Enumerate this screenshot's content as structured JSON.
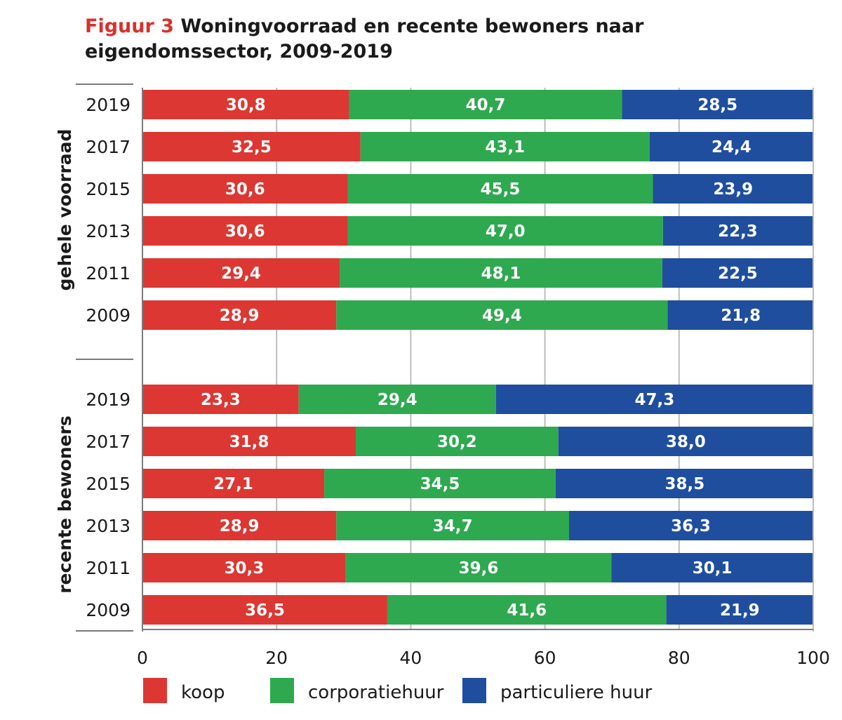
{
  "figure": {
    "number": "Figuur 3",
    "title": "Woningvoorraad en recente bewoners naar eigendomssector, 2009-2019"
  },
  "chart_data": {
    "type": "bar",
    "orientation": "horizontal",
    "stacked": true,
    "xlim": [
      0,
      100
    ],
    "x_ticks": [
      "0",
      "20",
      "40",
      "60",
      "80",
      "100"
    ],
    "grid": true,
    "legend_position": "bottom",
    "colors": {
      "koop": "#dc3732",
      "corporatiehuur": "#2ea94f",
      "particuliere huur": "#1f4e9e"
    },
    "series_names": [
      "koop",
      "corporatiehuur",
      "particuliere huur"
    ],
    "groups": [
      {
        "name": "gehele voorraad",
        "categories": [
          "2019",
          "2017",
          "2015",
          "2013",
          "2011",
          "2009"
        ],
        "series": [
          {
            "name": "koop",
            "values": [
              30.8,
              32.5,
              30.6,
              30.6,
              29.4,
              28.9
            ],
            "labels": [
              "30,8",
              "32,5",
              "30,6",
              "30,6",
              "29,4",
              "28,9"
            ]
          },
          {
            "name": "corporatiehuur",
            "values": [
              40.7,
              43.1,
              45.5,
              47.0,
              48.1,
              49.4
            ],
            "labels": [
              "40,7",
              "43,1",
              "45,5",
              "47,0",
              "48,1",
              "49,4"
            ]
          },
          {
            "name": "particuliere huur",
            "values": [
              28.5,
              24.4,
              23.9,
              22.3,
              22.5,
              21.8
            ],
            "labels": [
              "28,5",
              "24,4",
              "23,9",
              "22,3",
              "22,5",
              "21,8"
            ]
          }
        ]
      },
      {
        "name": "recente bewoners",
        "categories": [
          "2019",
          "2017",
          "2015",
          "2013",
          "2011",
          "2009"
        ],
        "series": [
          {
            "name": "koop",
            "values": [
              23.3,
              31.8,
              27.1,
              28.9,
              30.3,
              36.5
            ],
            "labels": [
              "23,3",
              "31,8",
              "27,1",
              "28,9",
              "30,3",
              "36,5"
            ]
          },
          {
            "name": "corporatiehuur",
            "values": [
              29.4,
              30.2,
              34.5,
              34.7,
              39.6,
              41.6
            ],
            "labels": [
              "29,4",
              "30,2",
              "34,5",
              "34,7",
              "39,6",
              "41,6"
            ]
          },
          {
            "name": "particuliere huur",
            "values": [
              47.3,
              38.0,
              38.5,
              36.3,
              30.1,
              21.9
            ],
            "labels": [
              "47,3",
              "38,0",
              "38,5",
              "36,3",
              "30,1",
              "21,9"
            ]
          }
        ]
      }
    ]
  }
}
